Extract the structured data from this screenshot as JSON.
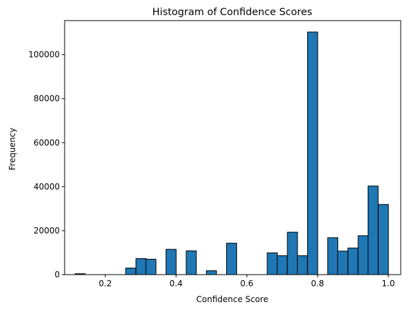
{
  "chart_data": {
    "type": "bar",
    "title": "Histogram of Confidence Scores",
    "xlabel": "Confidence Score",
    "ylabel": "Frequency",
    "xlim": [
      0.085,
      1.035
    ],
    "ylim": [
      0,
      115500
    ],
    "grid": false,
    "bar_color": "#1f77b4",
    "edge_color": "#000000",
    "bin_width": 0.0286,
    "bins": [
      {
        "x": 0.129,
        "value": 400
      },
      {
        "x": 0.272,
        "value": 3000
      },
      {
        "x": 0.301,
        "value": 7300
      },
      {
        "x": 0.329,
        "value": 7000
      },
      {
        "x": 0.386,
        "value": 11500
      },
      {
        "x": 0.443,
        "value": 10800
      },
      {
        "x": 0.5,
        "value": 1800
      },
      {
        "x": 0.557,
        "value": 14300
      },
      {
        "x": 0.672,
        "value": 9900
      },
      {
        "x": 0.7,
        "value": 8600
      },
      {
        "x": 0.729,
        "value": 19300
      },
      {
        "x": 0.757,
        "value": 8600
      },
      {
        "x": 0.786,
        "value": 110300
      },
      {
        "x": 0.843,
        "value": 16800
      },
      {
        "x": 0.871,
        "value": 10700
      },
      {
        "x": 0.9,
        "value": 12100
      },
      {
        "x": 0.929,
        "value": 17700
      },
      {
        "x": 0.957,
        "value": 40300
      },
      {
        "x": 0.986,
        "value": 31900
      }
    ],
    "x_ticks": [
      {
        "value": 0.2,
        "label": "0.2"
      },
      {
        "value": 0.4,
        "label": "0.4"
      },
      {
        "value": 0.6,
        "label": "0.6"
      },
      {
        "value": 0.8,
        "label": "0.8"
      },
      {
        "value": 1.0,
        "label": "1.0"
      }
    ],
    "y_ticks": [
      {
        "value": 0,
        "label": "0"
      },
      {
        "value": 20000,
        "label": "20000"
      },
      {
        "value": 40000,
        "label": "40000"
      },
      {
        "value": 60000,
        "label": "60000"
      },
      {
        "value": 80000,
        "label": "80000"
      },
      {
        "value": 100000,
        "label": "100000"
      }
    ]
  }
}
